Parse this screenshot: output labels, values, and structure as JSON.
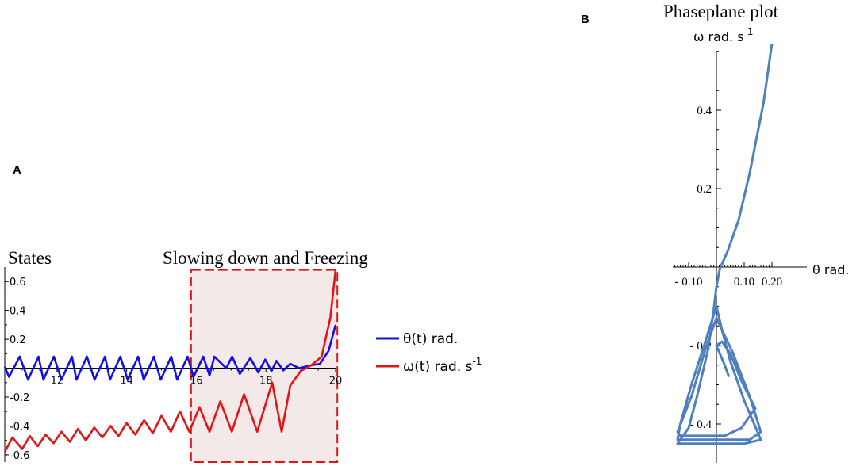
{
  "panel_a": {
    "letter": "A",
    "title_left": "States",
    "title_box": "Slowing down and Freezing"
  },
  "panel_b": {
    "letter": "B",
    "title": "Phaseplane plot",
    "ylabel": "ω rad. s",
    "ylabel_sup": "-1",
    "xlabel": "θ rad."
  },
  "colors": {
    "theta": "#1010e6",
    "omega": "#e01515",
    "highlight_fill": "#f3e9e9",
    "highlight_stroke": "#e01515",
    "phase": "#4f7fbe"
  },
  "chart_data": [
    {
      "type": "line",
      "title": "States",
      "annotation": "Slowing down and Freezing",
      "xlim": [
        10.5,
        20
      ],
      "ylim": [
        -0.65,
        0.7
      ],
      "x_ticks": [
        12,
        14,
        16,
        18,
        20
      ],
      "x_tick_labels": [
        "12",
        "14",
        "16",
        "18",
        "20"
      ],
      "y_ticks": [
        -0.6,
        -0.4,
        -0.2,
        0.2,
        0.4,
        0.6
      ],
      "y_tick_labels": [
        "-0.6",
        "-0.4",
        "-0.2",
        "0.2",
        "0.4",
        "0.6"
      ],
      "highlight_region": {
        "x": [
          15.85,
          20.05
        ],
        "y": [
          -0.65,
          0.68
        ]
      },
      "legend": [
        {
          "name": "θ(t) rad.",
          "sup": "",
          "color": "#1010e6"
        },
        {
          "name": "ω(t) rad. s",
          "sup": "-1",
          "color": "#e01515"
        }
      ],
      "series": [
        {
          "name": "θ(t) rad.",
          "x": [
            10.5,
            10.62,
            10.93,
            11.17,
            11.47,
            11.61,
            11.91,
            12.13,
            12.43,
            12.56,
            12.86,
            13.08,
            13.38,
            13.52,
            13.82,
            14.03,
            14.33,
            14.49,
            14.78,
            14.98,
            15.28,
            15.45,
            15.75,
            15.92,
            16.2,
            16.38,
            16.52,
            16.86,
            17.03,
            17.25,
            17.55,
            17.78,
            17.98,
            18.16,
            18.3,
            18.5,
            18.7,
            18.95,
            19.3,
            19.55,
            19.8,
            20.0
          ],
          "values": [
            0.01,
            -0.06,
            0.08,
            -0.08,
            0.08,
            -0.08,
            0.08,
            -0.08,
            0.08,
            -0.08,
            0.08,
            -0.08,
            0.08,
            -0.08,
            0.08,
            -0.08,
            0.08,
            -0.08,
            0.08,
            -0.08,
            0.08,
            -0.08,
            0.08,
            -0.06,
            0.08,
            -0.05,
            0.08,
            0.0,
            0.08,
            -0.04,
            0.07,
            -0.03,
            0.06,
            -0.02,
            0.05,
            -0.015,
            0.03,
            0.0,
            0.02,
            0.03,
            0.12,
            0.3
          ]
        },
        {
          "name": "ω(t) rad. s⁻¹",
          "x": [
            10.5,
            10.72,
            11.0,
            11.22,
            11.45,
            11.67,
            11.9,
            12.13,
            12.37,
            12.6,
            12.83,
            13.07,
            13.3,
            13.54,
            13.77,
            14.0,
            14.25,
            14.5,
            14.75,
            15.0,
            15.27,
            15.53,
            15.8,
            16.09,
            16.38,
            16.69,
            17.02,
            17.37,
            17.75,
            18.18,
            18.45,
            18.7,
            19.0,
            19.3,
            19.6,
            19.85,
            20.0
          ],
          "values": [
            -0.58,
            -0.48,
            -0.56,
            -0.47,
            -0.54,
            -0.46,
            -0.52,
            -0.44,
            -0.51,
            -0.42,
            -0.5,
            -0.41,
            -0.48,
            -0.4,
            -0.47,
            -0.38,
            -0.46,
            -0.36,
            -0.45,
            -0.33,
            -0.44,
            -0.3,
            -0.44,
            -0.27,
            -0.44,
            -0.23,
            -0.44,
            -0.18,
            -0.44,
            -0.1,
            -0.44,
            -0.12,
            -0.02,
            0.02,
            0.08,
            0.35,
            0.68
          ]
        }
      ]
    },
    {
      "type": "line",
      "title": "Phaseplane plot",
      "xlabel": "θ rad.",
      "ylabel": "ω rad. s⁻¹",
      "xlim": [
        -0.15,
        0.2
      ],
      "ylim": [
        -0.48,
        0.6
      ],
      "x_tick_labels": [
        "- 0.10",
        "0.10",
        "0.20"
      ],
      "x_ticks": [
        -0.1,
        0.1,
        0.2
      ],
      "y_tick_labels": [
        "0.4",
        "0.2",
        "- 0.2",
        "- 0.4"
      ],
      "y_ticks": [
        0.4,
        0.2,
        -0.2,
        -0.4
      ],
      "series": [
        {
          "name": "",
          "x": [
            0.2,
            0.17,
            0.12,
            0.08,
            0.04,
            0.012,
            0.0,
            -0.01,
            -0.03,
            -0.07,
            -0.1,
            -0.14,
            -0.1,
            -0.05,
            -0.02,
            0.0,
            0.03,
            0.07,
            0.1,
            0.16,
            0.1,
            0.05,
            0.02,
            0.0,
            -0.04,
            -0.09,
            -0.13,
            -0.14,
            -0.1,
            -0.05,
            -0.01,
            0.0,
            0.03,
            0.07,
            0.12,
            0.16,
            0.12,
            0.06,
            0.02,
            0.0,
            -0.04,
            -0.09,
            -0.14,
            -0.13,
            -0.08,
            -0.03,
            0.0,
            0.03,
            0.06,
            0.09,
            0.12,
            0.14,
            0.09,
            0.05,
            0.02,
            0.0,
            0.03,
            0.045
          ],
          "values": [
            0.57,
            0.42,
            0.24,
            0.12,
            0.04,
            -0.005,
            -0.05,
            -0.11,
            -0.21,
            -0.33,
            -0.41,
            -0.45,
            -0.45,
            -0.45,
            -0.45,
            -0.45,
            -0.45,
            -0.45,
            -0.45,
            -0.44,
            -0.34,
            -0.24,
            -0.16,
            -0.1,
            -0.19,
            -0.3,
            -0.4,
            -0.44,
            -0.44,
            -0.44,
            -0.44,
            -0.44,
            -0.44,
            -0.44,
            -0.44,
            -0.42,
            -0.33,
            -0.22,
            -0.16,
            -0.13,
            -0.21,
            -0.33,
            -0.42,
            -0.43,
            -0.43,
            -0.43,
            -0.43,
            -0.43,
            -0.42,
            -0.41,
            -0.38,
            -0.36,
            -0.29,
            -0.22,
            -0.19,
            -0.2,
            -0.25,
            -0.28
          ]
        }
      ]
    }
  ]
}
